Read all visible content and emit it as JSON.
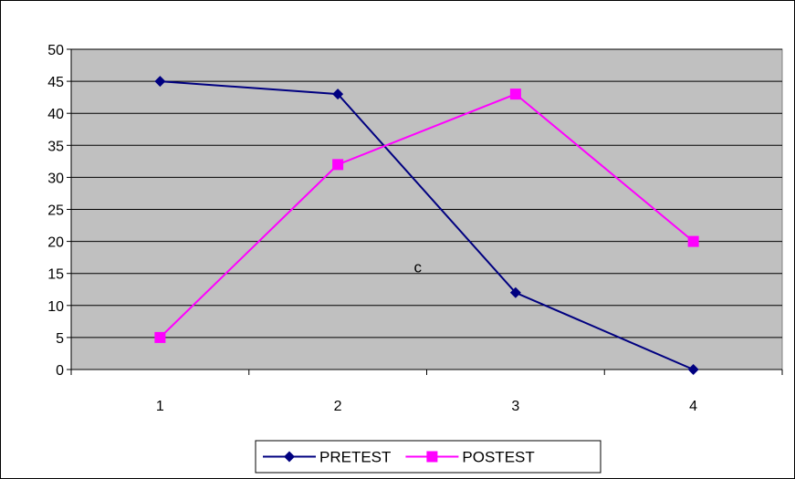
{
  "chart_data": {
    "type": "line",
    "title": "",
    "xlabel": "",
    "ylabel": "",
    "x": [
      1,
      2,
      3,
      4
    ],
    "x_tick_labels": [
      "1",
      "2",
      "3",
      "4"
    ],
    "y_tick_labels": [
      "0",
      "5",
      "10",
      "15",
      "20",
      "25",
      "30",
      "35",
      "40",
      "45",
      "50"
    ],
    "ylim": [
      0,
      50
    ],
    "y_step": 5,
    "grid": "horizontal",
    "plot_background": "#c0c0c0",
    "legend_position": "bottom",
    "annotations": [
      {
        "text": "c",
        "x": 2.45,
        "y": 16
      }
    ],
    "series": [
      {
        "name": "PRETEST",
        "values": [
          45,
          43,
          12,
          0
        ],
        "color": "#000080",
        "marker": "diamond"
      },
      {
        "name": "POSTEST",
        "values": [
          5,
          32,
          43,
          20
        ],
        "color": "#ff00ff",
        "marker": "square"
      }
    ]
  }
}
